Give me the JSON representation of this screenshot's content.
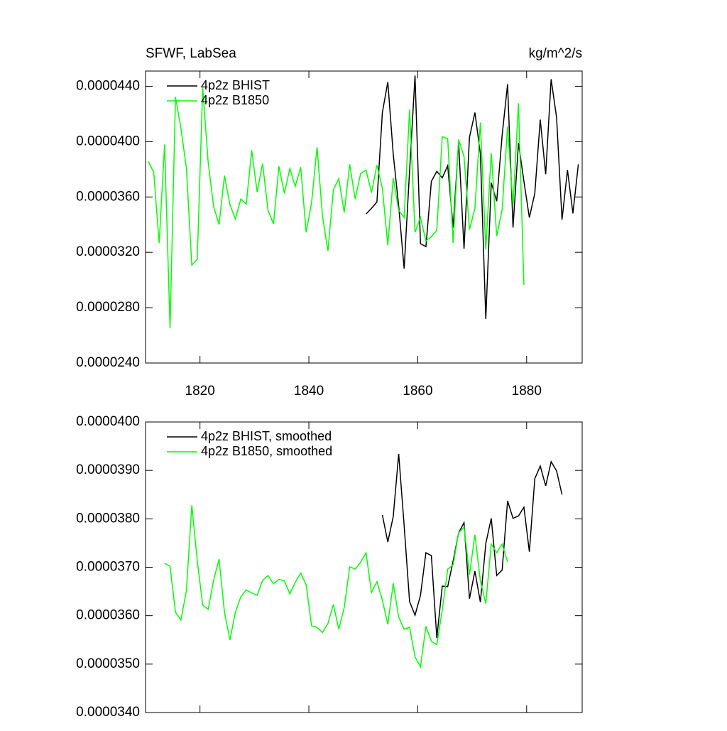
{
  "chart_data": [
    {
      "type": "line",
      "title": "SFWF, LabSea",
      "units": "kg/m^2/s",
      "xlim": [
        1810,
        1890.2
      ],
      "xticks": [
        1820,
        1840,
        1860,
        1880
      ],
      "ylim": [
        2.4e-05,
        4.51e-05
      ],
      "yticks": [
        {
          "value": 2.4e-05,
          "label": "0.0000240"
        },
        {
          "value": 2.8e-05,
          "label": "0.0000280"
        },
        {
          "value": 3.2e-05,
          "label": "0.0000320"
        },
        {
          "value": 3.6e-05,
          "label": "0.0000360"
        },
        {
          "value": 4e-05,
          "label": "0.0000400"
        },
        {
          "value": 4.4e-05,
          "label": "0.0000440"
        }
      ],
      "series": [
        {
          "name": "4p2z BHIST",
          "color": "#000000",
          "x": [
            1850.5,
            1851.5,
            1852.5,
            1853.5,
            1854.5,
            1855.5,
            1856.5,
            1857.5,
            1858.5,
            1859.5,
            1860.5,
            1861.5,
            1862.5,
            1863.5,
            1864.5,
            1865.5,
            1866.5,
            1867.5,
            1868.5,
            1869.5,
            1870.5,
            1871.5,
            1872.5,
            1873.5,
            1874.5,
            1875.5,
            1876.5,
            1877.5,
            1878.5,
            1879.5,
            1880.5,
            1881.5,
            1882.5,
            1883.5,
            1884.5,
            1885.5,
            1886.5,
            1887.5,
            1888.5,
            1889.5
          ],
          "values": [
            3.477e-05,
            3.518e-05,
            3.564e-05,
            4.21e-05,
            4.431e-05,
            3.908e-05,
            3.533e-05,
            3.082e-05,
            3.79e-05,
            4.477e-05,
            3.262e-05,
            3.241e-05,
            3.713e-05,
            3.785e-05,
            3.738e-05,
            3.826e-05,
            3.379e-05,
            3.995e-05,
            3.226e-05,
            4.031e-05,
            4.21e-05,
            3.913e-05,
            2.718e-05,
            3.703e-05,
            3.569e-05,
            4.046e-05,
            4.415e-05,
            3.379e-05,
            3.99e-05,
            3.713e-05,
            3.451e-05,
            3.626e-05,
            4.159e-05,
            3.764e-05,
            4.451e-05,
            4.174e-05,
            3.436e-05,
            3.795e-05,
            3.482e-05,
            3.836e-05
          ]
        },
        {
          "name": "4p2z B1850",
          "color": "#00ff00",
          "x": [
            1810.5,
            1811.5,
            1812.5,
            1813.5,
            1814.5,
            1815.5,
            1816.5,
            1817.5,
            1818.5,
            1819.5,
            1820.5,
            1821.5,
            1822.5,
            1823.5,
            1824.5,
            1825.5,
            1826.5,
            1827.5,
            1828.5,
            1829.5,
            1830.5,
            1831.5,
            1832.5,
            1833.5,
            1834.5,
            1835.5,
            1836.5,
            1837.5,
            1838.5,
            1839.5,
            1840.5,
            1841.5,
            1842.5,
            1843.5,
            1844.5,
            1845.5,
            1846.5,
            1847.5,
            1848.5,
            1849.5,
            1850.5,
            1851.5,
            1852.5,
            1853.5,
            1854.5,
            1855.5,
            1856.5,
            1857.5,
            1858.5,
            1859.5,
            1860.5,
            1861.5,
            1862.5,
            1863.5,
            1864.5,
            1865.5,
            1866.5,
            1867.5,
            1868.5,
            1869.5,
            1870.5,
            1871.5,
            1872.5,
            1873.5,
            1874.5,
            1875.5,
            1876.5,
            1877.5,
            1878.5,
            1879.5
          ],
          "values": [
            3.856e-05,
            3.779e-05,
            3.267e-05,
            3.979e-05,
            2.651e-05,
            4.323e-05,
            4.097e-05,
            3.81e-05,
            3.108e-05,
            3.149e-05,
            4.39e-05,
            3.851e-05,
            3.533e-05,
            3.4e-05,
            3.754e-05,
            3.544e-05,
            3.441e-05,
            3.585e-05,
            3.549e-05,
            3.938e-05,
            3.636e-05,
            3.841e-05,
            3.503e-05,
            3.405e-05,
            3.821e-05,
            3.626e-05,
            3.805e-05,
            3.677e-05,
            3.815e-05,
            3.344e-05,
            3.559e-05,
            3.959e-05,
            3.462e-05,
            3.21e-05,
            3.651e-05,
            3.733e-05,
            3.487e-05,
            3.836e-05,
            3.585e-05,
            3.769e-05,
            3.795e-05,
            3.631e-05,
            3.831e-05,
            3.662e-05,
            3.251e-05,
            3.738e-05,
            3.503e-05,
            3.451e-05,
            4.231e-05,
            3.344e-05,
            3.451e-05,
            3.282e-05,
            3.313e-05,
            3.359e-05,
            4.036e-05,
            4.021e-05,
            3.267e-05,
            4.015e-05,
            3.892e-05,
            3.364e-05,
            3.518e-05,
            4.138e-05,
            3.221e-05,
            3.918e-05,
            3.318e-05,
            3.508e-05,
            4.108e-05,
            3.538e-05,
            4.277e-05,
            2.964e-05
          ]
        }
      ]
    },
    {
      "type": "line",
      "xlim": [
        1810,
        1890.2
      ],
      "xticks": [
        1820,
        1840,
        1860,
        1880
      ],
      "ylim": [
        3.4e-05,
        4e-05
      ],
      "yticks": [
        {
          "value": 3.4e-05,
          "label": "0.0000340"
        },
        {
          "value": 3.5e-05,
          "label": "0.0000350"
        },
        {
          "value": 3.6e-05,
          "label": "0.0000360"
        },
        {
          "value": 3.7e-05,
          "label": "0.0000370"
        },
        {
          "value": 3.8e-05,
          "label": "0.0000380"
        },
        {
          "value": 3.9e-05,
          "label": "0.0000390"
        },
        {
          "value": 4e-05,
          "label": "0.0000400"
        }
      ],
      "series": [
        {
          "name": "4p2z BHIST, smoothed",
          "color": "#000000",
          "x": [
            1853.5,
            1854.5,
            1855.5,
            1856.5,
            1857.5,
            1858.5,
            1859.5,
            1860.5,
            1861.5,
            1862.5,
            1863.5,
            1864.5,
            1865.5,
            1866.5,
            1867.5,
            1868.5,
            1869.5,
            1870.5,
            1871.5,
            1872.5,
            1873.5,
            1874.5,
            1875.5,
            1876.5,
            1877.5,
            1878.5,
            1879.5,
            1880.5,
            1881.5,
            1882.5,
            1883.5,
            1884.5,
            1885.5,
            1886.5
          ],
          "values": [
            3.808e-05,
            3.752e-05,
            3.805e-05,
            3.934e-05,
            3.786e-05,
            3.629e-05,
            3.601e-05,
            3.642e-05,
            3.73e-05,
            3.724e-05,
            3.554e-05,
            3.661e-05,
            3.66e-05,
            3.713e-05,
            3.771e-05,
            3.792e-05,
            3.635e-05,
            3.692e-05,
            3.628e-05,
            3.749e-05,
            3.801e-05,
            3.683e-05,
            3.694e-05,
            3.837e-05,
            3.801e-05,
            3.806e-05,
            3.824e-05,
            3.732e-05,
            3.883e-05,
            3.909e-05,
            3.868e-05,
            3.918e-05,
            3.899e-05,
            3.85e-05
          ]
        },
        {
          "name": "4p2z B1850, smoothed",
          "color": "#00ff00",
          "x": [
            1813.5,
            1814.5,
            1815.5,
            1816.5,
            1817.5,
            1818.5,
            1819.5,
            1820.5,
            1821.5,
            1822.5,
            1823.5,
            1824.5,
            1825.5,
            1826.5,
            1827.5,
            1828.5,
            1829.5,
            1830.5,
            1831.5,
            1832.5,
            1833.5,
            1834.5,
            1835.5,
            1836.5,
            1837.5,
            1838.5,
            1839.5,
            1840.5,
            1841.5,
            1842.5,
            1843.5,
            1844.5,
            1845.5,
            1846.5,
            1847.5,
            1848.5,
            1849.5,
            1850.5,
            1851.5,
            1852.5,
            1853.5,
            1854.5,
            1855.5,
            1856.5,
            1857.5,
            1858.5,
            1859.5,
            1860.5,
            1861.5,
            1862.5,
            1863.5,
            1864.5,
            1865.5,
            1866.5,
            1867.5,
            1868.5,
            1869.5,
            1870.5,
            1871.5,
            1872.5,
            1873.5,
            1874.5,
            1875.5,
            1876.5
          ],
          "values": [
            3.708e-05,
            3.702e-05,
            3.607e-05,
            3.591e-05,
            3.651e-05,
            3.828e-05,
            3.713e-05,
            3.622e-05,
            3.613e-05,
            3.673e-05,
            3.717e-05,
            3.607e-05,
            3.55e-05,
            3.607e-05,
            3.639e-05,
            3.653e-05,
            3.647e-05,
            3.642e-05,
            3.673e-05,
            3.683e-05,
            3.666e-05,
            3.675e-05,
            3.672e-05,
            3.645e-05,
            3.669e-05,
            3.688e-05,
            3.664e-05,
            3.579e-05,
            3.576e-05,
            3.565e-05,
            3.584e-05,
            3.623e-05,
            3.572e-05,
            3.617e-05,
            3.701e-05,
            3.696e-05,
            3.71e-05,
            3.73e-05,
            3.648e-05,
            3.67e-05,
            3.632e-05,
            3.582e-05,
            3.667e-05,
            3.597e-05,
            3.572e-05,
            3.576e-05,
            3.515e-05,
            3.494e-05,
            3.578e-05,
            3.547e-05,
            3.54e-05,
            3.611e-05,
            3.696e-05,
            3.705e-05,
            3.771e-05,
            3.783e-05,
            3.685e-05,
            3.767e-05,
            3.672e-05,
            3.625e-05,
            3.748e-05,
            3.73e-05,
            3.748e-05,
            3.711e-05
          ]
        }
      ]
    }
  ]
}
